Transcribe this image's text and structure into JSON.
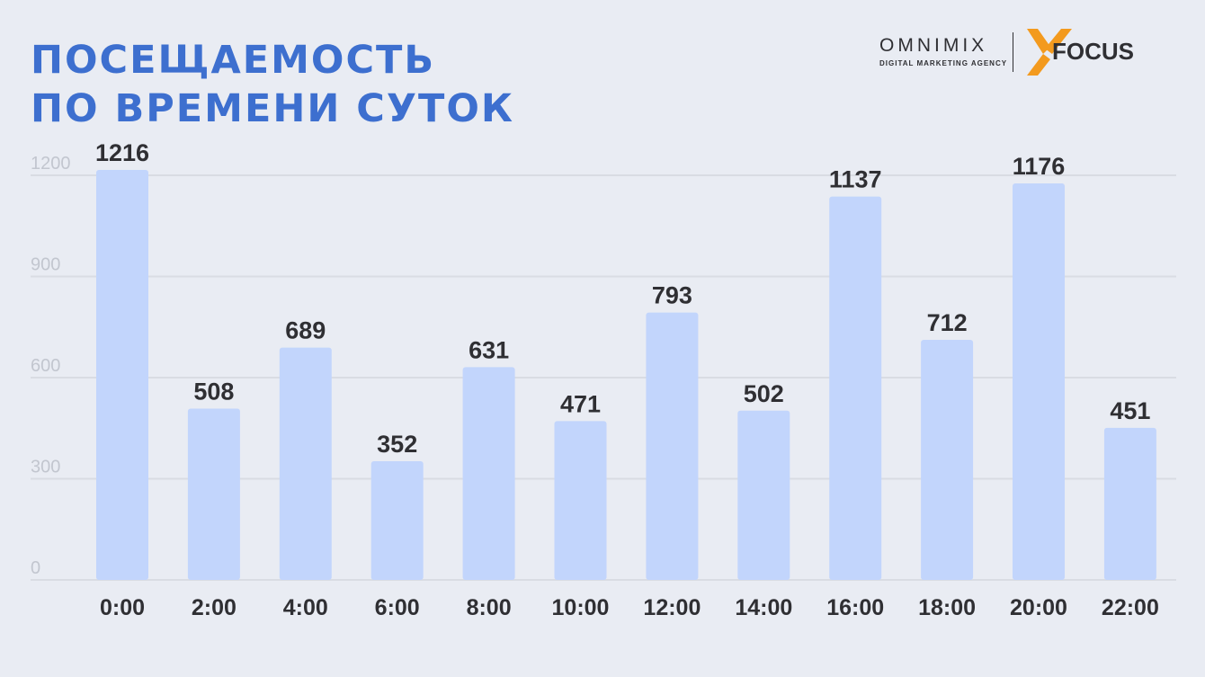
{
  "title": {
    "line1": "ПОСЕЩАЕМОСТЬ",
    "line2": "ПО ВРЕМЕНИ СУТОК"
  },
  "logos": {
    "omnimix_name": "OMNIMIX",
    "omnimix_sub": "DIGITAL MARKETING AGENCY",
    "focus_text": "FOCUS"
  },
  "colors": {
    "title": "#3d6fcf",
    "bar": "#c2d5fc",
    "grid": "#d9dce3",
    "focus_orange": "#f39a1e"
  },
  "chart_data": {
    "type": "bar",
    "categories": [
      "0:00",
      "2:00",
      "4:00",
      "6:00",
      "8:00",
      "10:00",
      "12:00",
      "14:00",
      "16:00",
      "18:00",
      "20:00",
      "22:00"
    ],
    "values": [
      1216,
      508,
      689,
      352,
      631,
      471,
      793,
      502,
      1137,
      712,
      1176,
      451
    ],
    "y_ticks": [
      "0",
      "300",
      "600",
      "900",
      "1200"
    ],
    "ylim": [
      0,
      1200
    ],
    "grid": true,
    "legend": "none"
  }
}
